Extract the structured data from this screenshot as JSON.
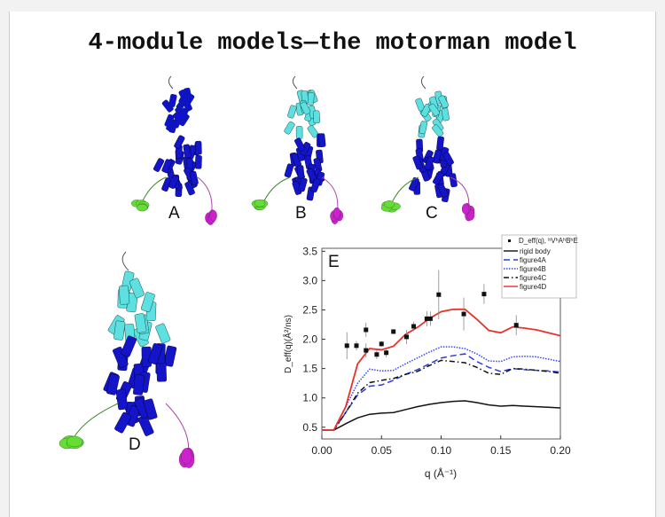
{
  "title": "4-module models—the motorman model",
  "panels": [
    {
      "label": "A",
      "top_color": "#1010d0"
    },
    {
      "label": "B",
      "top_color": "#5ee0e0"
    },
    {
      "label": "C",
      "top_color": "#5ee0e0"
    },
    {
      "label": "D",
      "top_color": "#5ee0e0"
    }
  ],
  "colors": {
    "body": "#1414c8",
    "green": "#66dd33",
    "magenta": "#cc22cc"
  },
  "chart_data": {
    "type": "line",
    "panel_label": "E",
    "xlabel": "q (Å⁻¹)",
    "ylabel": "D_eff(q)(Å²/ns)",
    "xlim": [
      0,
      0.2
    ],
    "ylim": [
      0.3,
      3.55
    ],
    "xticks": [
      "0.00",
      "0.05",
      "0.10",
      "0.15",
      "0.20"
    ],
    "yticks": [
      "0.5",
      "1.0",
      "1.5",
      "2.0",
      "2.5",
      "3.0",
      "3.5"
    ],
    "legend_position": "top-right",
    "x": [
      0,
      0.01,
      0.02,
      0.03,
      0.04,
      0.05,
      0.06,
      0.07,
      0.08,
      0.09,
      0.1,
      0.11,
      0.12,
      0.13,
      0.14,
      0.15,
      0.16,
      0.17,
      0.18,
      0.19,
      0.2
    ],
    "series": [
      {
        "name": "rigid body",
        "color": "#111111",
        "dash": "",
        "values": [
          0.45,
          0.45,
          0.56,
          0.66,
          0.72,
          0.74,
          0.75,
          0.8,
          0.85,
          0.89,
          0.92,
          0.94,
          0.95,
          0.92,
          0.88,
          0.86,
          0.87,
          0.86,
          0.85,
          0.84,
          0.83
        ]
      },
      {
        "name": "figure4A",
        "color": "#2a3ee0",
        "dash": "7,4",
        "values": [
          0.45,
          0.45,
          0.75,
          1.05,
          1.2,
          1.22,
          1.3,
          1.4,
          1.48,
          1.58,
          1.68,
          1.72,
          1.75,
          1.62,
          1.52,
          1.45,
          1.5,
          1.48,
          1.47,
          1.46,
          1.44
        ]
      },
      {
        "name": "figure4B",
        "color": "#3344ff",
        "dash": "1.5,1.5",
        "values": [
          0.45,
          0.45,
          0.85,
          1.25,
          1.49,
          1.46,
          1.47,
          1.58,
          1.68,
          1.78,
          1.87,
          1.87,
          1.84,
          1.75,
          1.63,
          1.62,
          1.7,
          1.71,
          1.7,
          1.66,
          1.62
        ]
      },
      {
        "name": "figure4C",
        "color": "#111111",
        "dash": "6,3,1.5,3",
        "values": [
          0.45,
          0.45,
          0.75,
          1.08,
          1.26,
          1.3,
          1.33,
          1.4,
          1.45,
          1.55,
          1.64,
          1.62,
          1.6,
          1.52,
          1.42,
          1.4,
          1.5,
          1.49,
          1.47,
          1.45,
          1.42
        ]
      },
      {
        "name": "figure4D",
        "color": "#e8332a",
        "dash": "",
        "values": [
          0.45,
          0.45,
          0.85,
          1.58,
          1.84,
          1.82,
          1.88,
          2.08,
          2.2,
          2.35,
          2.47,
          2.51,
          2.51,
          2.34,
          2.15,
          2.11,
          2.21,
          2.19,
          2.16,
          2.11,
          2.06
        ]
      }
    ],
    "points": {
      "name": "D_eff(q), ʰVʰAʰBʰE",
      "q": [
        0.021,
        0.029,
        0.037,
        0.037,
        0.046,
        0.05,
        0.054,
        0.06,
        0.071,
        0.077,
        0.088,
        0.091,
        0.098,
        0.119,
        0.136,
        0.163
      ],
      "D": [
        1.89,
        1.89,
        2.16,
        1.81,
        1.74,
        1.92,
        1.77,
        2.13,
        2.04,
        2.22,
        2.35,
        2.35,
        2.76,
        2.43,
        2.77,
        2.24
      ],
      "err": [
        0.23,
        0.08,
        0.12,
        0.12,
        0.08,
        0.05,
        0.08,
        0.04,
        0.12,
        0.08,
        0.13,
        0.12,
        0.42,
        0.28,
        0.17,
        0.17
      ]
    }
  }
}
